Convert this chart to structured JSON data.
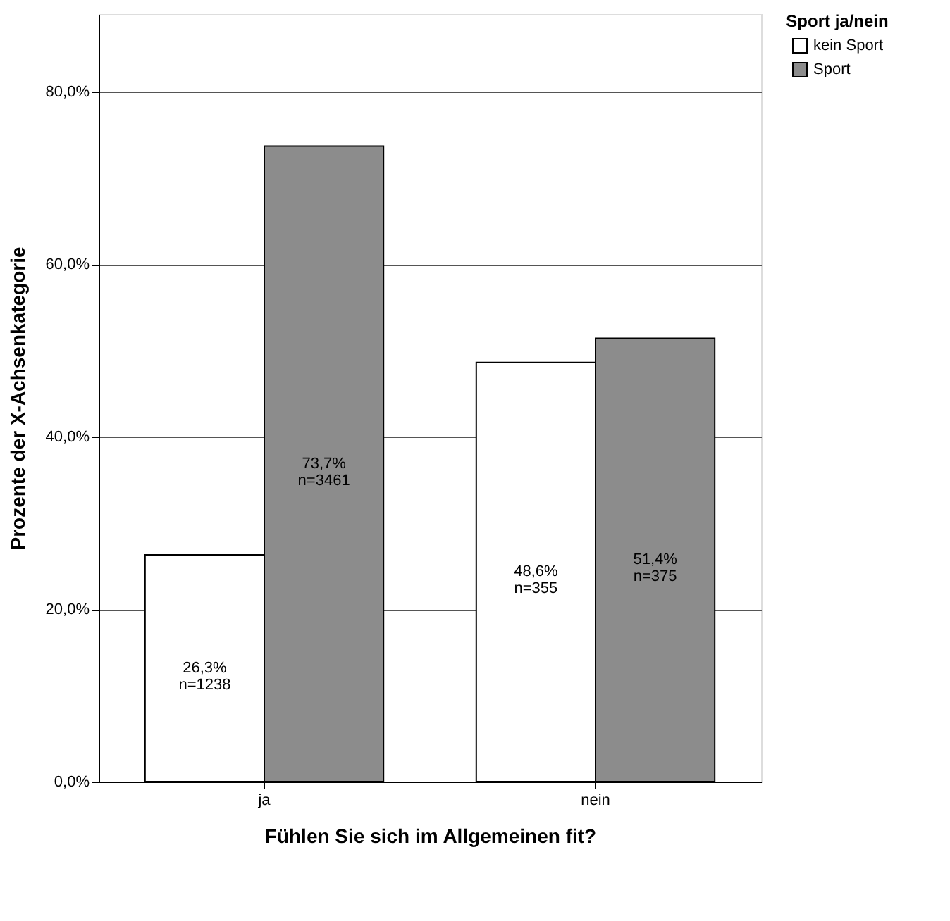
{
  "chart_data": {
    "type": "bar",
    "xlabel": "Fühlen Sie sich im Allgemeinen fit?",
    "ylabel": "Prozente der X-Achsenkategorie",
    "legend_title": "Sport ja/nein",
    "categories": [
      "ja",
      "nein"
    ],
    "series": [
      {
        "name": "kein Sport",
        "color": "#ffffff",
        "values": [
          26.3,
          48.6
        ],
        "value_labels": [
          "26,3%\nn=1238",
          "48,6%\nn=355"
        ]
      },
      {
        "name": "Sport",
        "color": "#8c8c8c",
        "values": [
          73.7,
          51.4
        ],
        "value_labels": [
          "73,7%\nn=3461",
          "51,4%\nn=375"
        ]
      }
    ],
    "ylim": [
      0,
      89
    ],
    "yticks": [
      {
        "value": 0,
        "label": "0,0%"
      },
      {
        "value": 20,
        "label": "20,0%"
      },
      {
        "value": 40,
        "label": "40,0%"
      },
      {
        "value": 60,
        "label": "60,0%"
      },
      {
        "value": 80,
        "label": "80,0%"
      }
    ],
    "grid": "y",
    "legend": "top right"
  }
}
